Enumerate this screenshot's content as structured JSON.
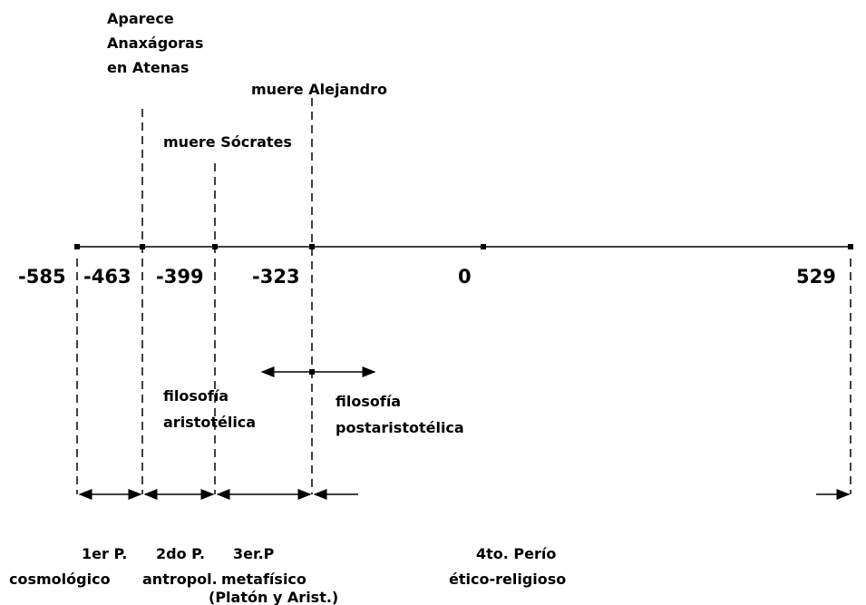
{
  "events": [
    {
      "lines": [
        "Aparece",
        "Anaxágoras",
        "en Atenas"
      ]
    },
    {
      "lines": [
        "muere Alejandro"
      ]
    },
    {
      "lines": [
        "muere Sócrates"
      ]
    }
  ],
  "years": [
    "-585",
    "-463",
    "-399",
    "-323",
    "0",
    "529"
  ],
  "philosophies": [
    {
      "lines": [
        "filosofía",
        "aristotélica"
      ]
    },
    {
      "lines": [
        "filosofía",
        "postaristotélica"
      ]
    }
  ],
  "periods": [
    {
      "lines": [
        "1er P.",
        "cosmológico"
      ]
    },
    {
      "lines": [
        "2do P.",
        "antropol."
      ]
    },
    {
      "lines": [
        "3er.P",
        "metafísico",
        "(Platón y Arist.)"
      ]
    },
    {
      "lines": [
        "4to. Perío",
        "ético-religioso"
      ]
    }
  ]
}
